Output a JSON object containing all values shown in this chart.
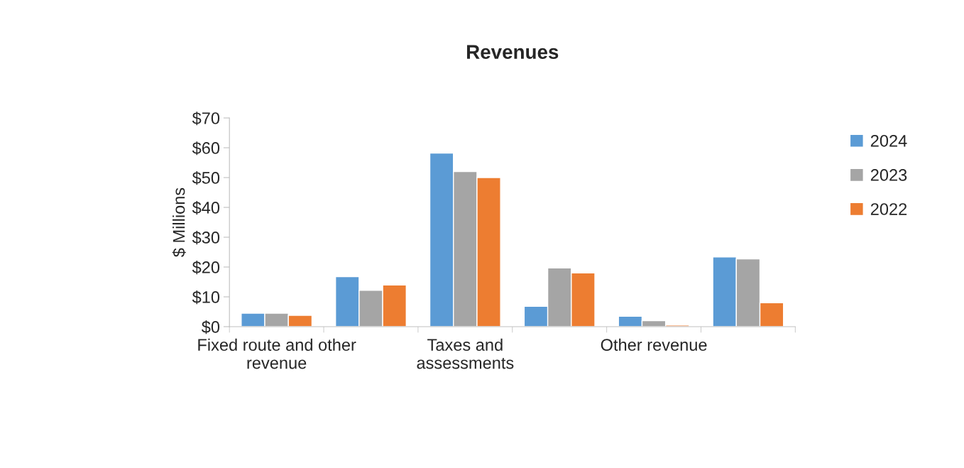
{
  "chart_data": {
    "type": "bar",
    "title": "Revenues",
    "ylabel": "$ Millions",
    "categories": [
      "Fixed route and other\nrevenue",
      null,
      "Taxes and\nassessments",
      null,
      "Other revenue",
      null
    ],
    "series": [
      {
        "name": "2024",
        "color": "#5b9bd5",
        "values": [
          4.5,
          16.8,
          58.2,
          6.8,
          3.5,
          23.4
        ]
      },
      {
        "name": "2023",
        "color": "#a5a5a5",
        "values": [
          4.5,
          12.2,
          52,
          19.7,
          2,
          22.7
        ]
      },
      {
        "name": "2022",
        "color": "#ed7d31",
        "values": [
          3.8,
          14,
          50,
          18,
          0.5,
          8
        ]
      }
    ],
    "ylim": [
      0,
      70
    ],
    "yticks": [
      {
        "value": 0,
        "label": "$0"
      },
      {
        "value": 10,
        "label": "$10"
      },
      {
        "value": 20,
        "label": "$20"
      },
      {
        "value": 30,
        "label": "$30"
      },
      {
        "value": 40,
        "label": "$40"
      },
      {
        "value": 50,
        "label": "$50"
      },
      {
        "value": 60,
        "label": "$60"
      },
      {
        "value": 70,
        "label": "$70"
      }
    ],
    "grid": false,
    "legend": "right"
  }
}
